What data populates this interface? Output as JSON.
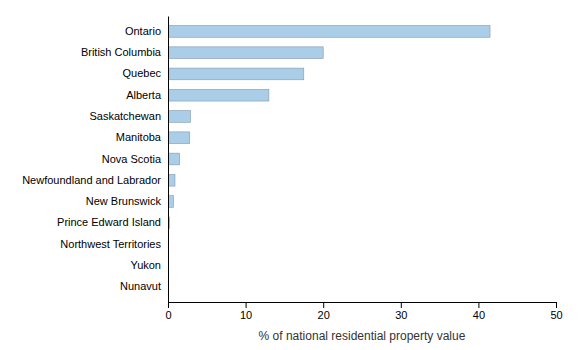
{
  "chart_data": {
    "type": "bar",
    "orientation": "horizontal",
    "categories": [
      "Nunavut",
      "Yukon",
      "Northwest Territories",
      "Prince Edward Island",
      "New Brunswick",
      "Newfoundland and Labrador",
      "Nova Scotia",
      "Manitoba",
      "Saskatchewan",
      "Alberta",
      "Quebec",
      "British Columbia",
      "Ontario"
    ],
    "values": [
      0.05,
      0.05,
      0.05,
      0.2,
      0.7,
      0.9,
      1.5,
      2.8,
      2.9,
      13.0,
      17.5,
      20.0,
      41.5
    ],
    "color": "#aacde8",
    "xlabel": "% of national residential property value",
    "xlim": [
      0,
      50
    ],
    "xticks": [
      0,
      10,
      20,
      30,
      40,
      50
    ],
    "grid": false
  }
}
